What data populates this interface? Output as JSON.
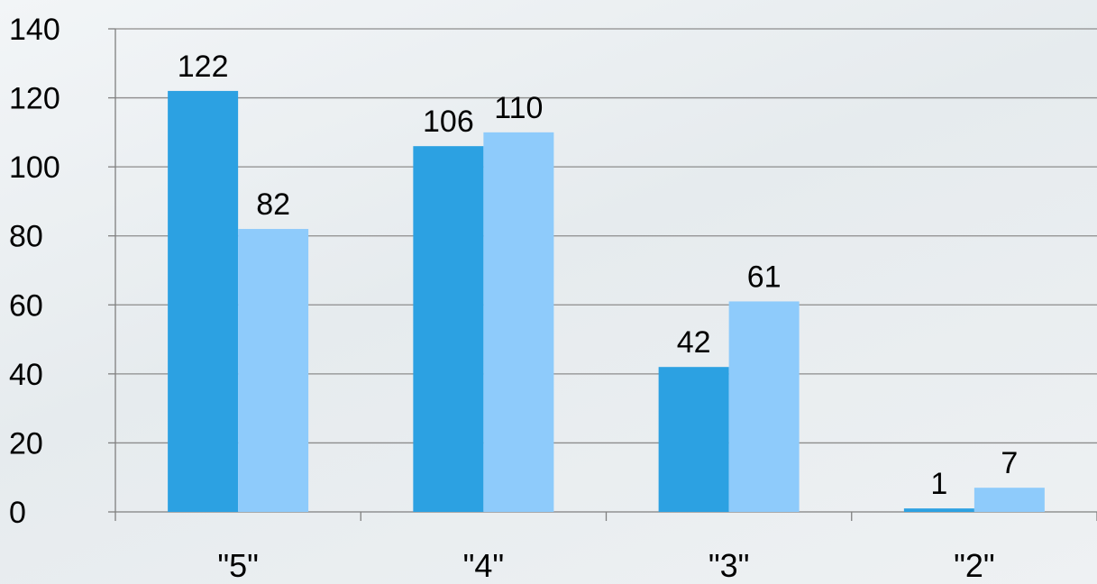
{
  "chart_data": {
    "type": "bar",
    "categories": [
      "\"5\"",
      "\"4\"",
      "\"3\"",
      "\"2\""
    ],
    "series": [
      {
        "values": [
          122,
          106,
          42,
          1
        ],
        "color": "#2ca1e2"
      },
      {
        "values": [
          82,
          110,
          61,
          7
        ],
        "color": "#8ecbfb"
      }
    ],
    "ylim": [
      0,
      140
    ],
    "yticks": [
      0,
      20,
      40,
      60,
      80,
      100,
      120,
      140
    ],
    "grid": true,
    "data_labels": true,
    "gridline_color": "#8c8c8c",
    "axis_color": "#7f7f7f"
  }
}
